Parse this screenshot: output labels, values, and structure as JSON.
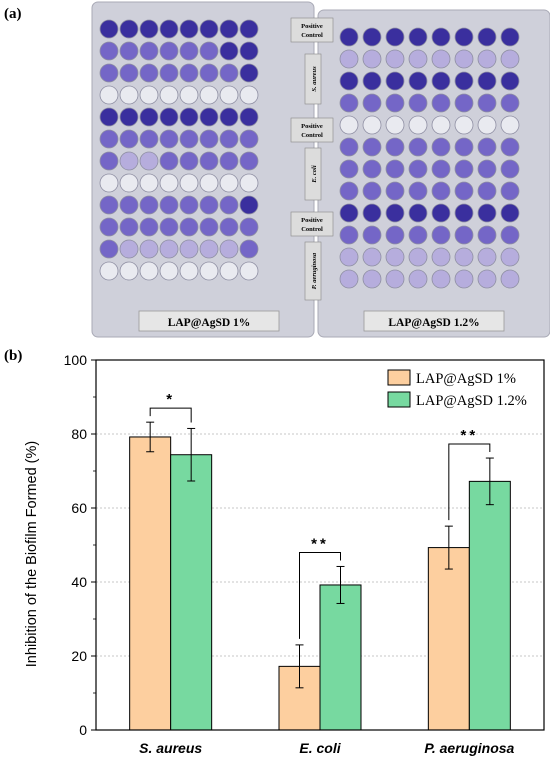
{
  "panels": {
    "a": "(a)",
    "b": "(b)"
  },
  "photo": {
    "plates": [
      {
        "caption": "LAP@AgSD 1%",
        "tags": [
          {
            "text": "Positive Control",
            "group": "Positive Control"
          },
          {
            "text": "S. aureus",
            "group": "S. aureus"
          },
          {
            "text": "Positive Control",
            "group": "Positive Control"
          },
          {
            "text": "E. coli",
            "group": "E. coli"
          },
          {
            "text": "Positive Control",
            "group": "Positive Control"
          },
          {
            "text": "P. aeruginosa",
            "group": "P. aeruginosa"
          }
        ]
      },
      {
        "caption": "LAP@AgSD 1.2%",
        "tags": []
      }
    ],
    "colors": {
      "plate_bg": "#cfd0da",
      "well_empty": "#e9eaf0",
      "stain_dark": "#3a2f9e",
      "stain_mid": "#7466c7",
      "stain_light": "#b6addd",
      "caption_bg": "#e6e6e6"
    },
    "rows": [
      [
        "dark",
        "dark",
        "dark",
        "dark",
        "dark",
        "dark",
        "dark",
        "dark"
      ],
      [
        "mid",
        "mid",
        "mid",
        "mid",
        "mid",
        "mid",
        "dark",
        "dark"
      ],
      [
        "mid",
        "mid",
        "mid",
        "mid",
        "mid",
        "mid",
        "mid",
        "dark"
      ],
      [
        "empty",
        "empty",
        "empty",
        "empty",
        "empty",
        "empty",
        "empty",
        "empty"
      ],
      [
        "dark",
        "dark",
        "dark",
        "dark",
        "dark",
        "dark",
        "dark",
        "dark"
      ],
      [
        "mid",
        "mid",
        "mid",
        "mid",
        "mid",
        "mid",
        "mid",
        "mid"
      ],
      [
        "mid",
        "light",
        "light",
        "mid",
        "mid",
        "mid",
        "mid",
        "mid"
      ],
      [
        "empty",
        "empty",
        "empty",
        "empty",
        "empty",
        "empty",
        "empty",
        "empty"
      ],
      [
        "mid",
        "mid",
        "mid",
        "mid",
        "mid",
        "mid",
        "mid",
        "dark"
      ],
      [
        "mid",
        "mid",
        "mid",
        "mid",
        "mid",
        "mid",
        "mid",
        "mid"
      ],
      [
        "mid",
        "light",
        "light",
        "light",
        "light",
        "light",
        "light",
        "mid"
      ],
      [
        "empty",
        "empty",
        "empty",
        "empty",
        "empty",
        "empty",
        "empty",
        "empty"
      ]
    ],
    "rows_right": [
      [
        "dark",
        "dark",
        "dark",
        "dark",
        "dark",
        "dark",
        "dark",
        "dark"
      ],
      [
        "light",
        "light",
        "light",
        "light",
        "light",
        "light",
        "light",
        "light"
      ],
      [
        "dark",
        "dark",
        "dark",
        "dark",
        "dark",
        "dark",
        "dark",
        "dark"
      ],
      [
        "mid",
        "mid",
        "mid",
        "mid",
        "mid",
        "mid",
        "mid",
        "mid"
      ],
      [
        "empty",
        "empty",
        "empty",
        "empty",
        "empty",
        "empty",
        "empty",
        "empty"
      ],
      [
        "mid",
        "mid",
        "mid",
        "mid",
        "mid",
        "mid",
        "mid",
        "mid"
      ],
      [
        "mid",
        "mid",
        "mid",
        "mid",
        "mid",
        "mid",
        "mid",
        "mid"
      ],
      [
        "mid",
        "mid",
        "mid",
        "mid",
        "mid",
        "mid",
        "mid",
        "mid"
      ],
      [
        "dark",
        "dark",
        "dark",
        "dark",
        "dark",
        "dark",
        "dark",
        "dark"
      ],
      [
        "mid",
        "mid",
        "mid",
        "mid",
        "mid",
        "mid",
        "mid",
        "mid"
      ],
      [
        "light",
        "light",
        "light",
        "light",
        "light",
        "light",
        "light",
        "light"
      ],
      [
        "light",
        "light",
        "light",
        "light",
        "light",
        "light",
        "light",
        "light"
      ]
    ]
  },
  "chart_data": {
    "type": "bar",
    "categories": [
      "S. aureus",
      "E. coli",
      "P. aeruginosa"
    ],
    "series": [
      {
        "name": "LAP@AgSD 1%",
        "values": [
          79.2,
          17.2,
          49.3
        ],
        "errors": [
          4.0,
          5.8,
          5.8
        ],
        "color": "#fdcf9f"
      },
      {
        "name": "LAP@AgSD 1.2%",
        "values": [
          74.4,
          39.2,
          67.2
        ],
        "errors": [
          7.1,
          5.0,
          6.3
        ],
        "color": "#77d9a0"
      }
    ],
    "significance": [
      "*",
      "**",
      "**"
    ],
    "ylabel": "Inhibition of the Biofilm Formed (%)",
    "xlabel": "",
    "ylim": [
      0,
      100
    ],
    "yticks": [
      0,
      20,
      40,
      60,
      80,
      100
    ],
    "grid": "horizontal dashed",
    "legend_position": "top-right"
  }
}
